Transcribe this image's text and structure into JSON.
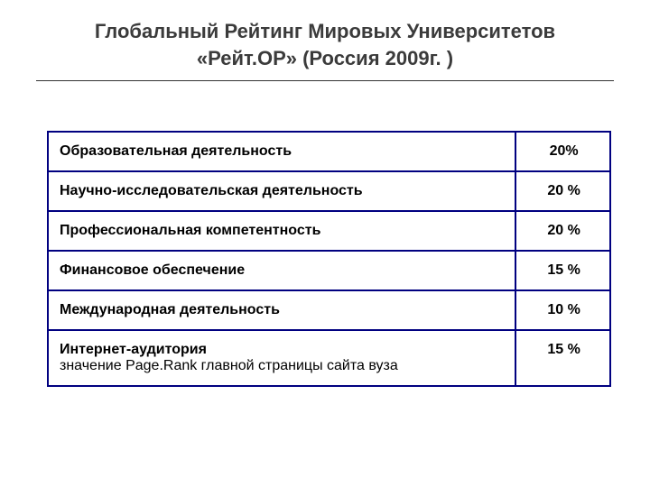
{
  "title_line1": "Глобальный Рейтинг Мировых Университетов",
  "title_line2": "«Рейт.ОР» (Россия 2009г. )",
  "table": {
    "border_color": "#000080",
    "rows": [
      {
        "label": "Образовательная деятельность",
        "subtext": "",
        "value": "20%"
      },
      {
        "label": "Научно-исследовательская деятельность",
        "subtext": "",
        "value": "20 %"
      },
      {
        "label": "Профессиональная компетентность",
        "subtext": "",
        "value": "20 %"
      },
      {
        "label": "Финансовое обеспечение",
        "subtext": "",
        "value": "15 %"
      },
      {
        "label": "Международная деятельность",
        "subtext": "",
        "value": "10 %"
      },
      {
        "label": "Интернет-аудитория",
        "subtext": "значение Page.Rank главной страницы сайта вуза",
        "value": "15 %"
      }
    ]
  },
  "colors": {
    "background": "#ffffff",
    "title_text": "#3b3b3b",
    "body_text": "#000000",
    "hr": "#333333"
  },
  "fonts": {
    "title_size": 22,
    "body_size": 16,
    "family": "Verdana, Arial, sans-serif"
  }
}
